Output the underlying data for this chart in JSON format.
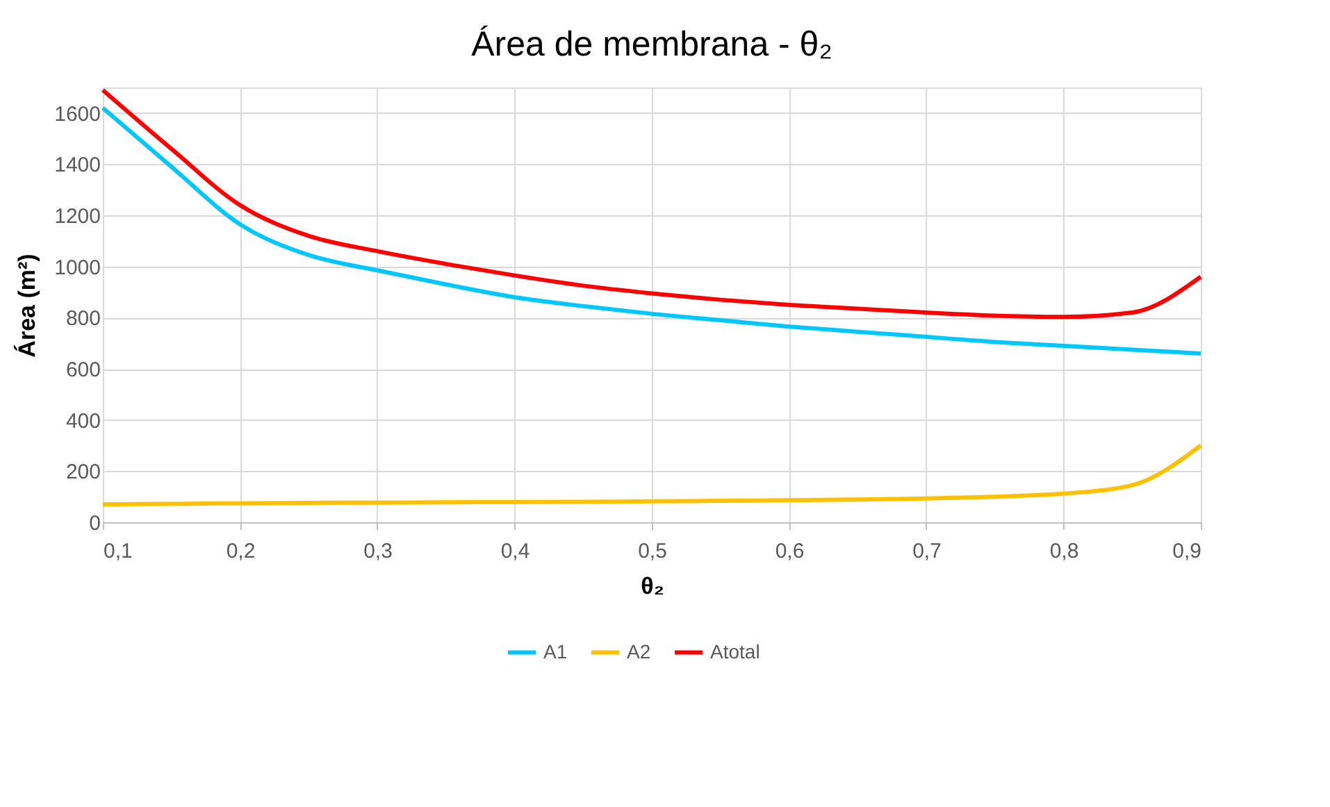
{
  "chart_data": {
    "type": "line",
    "title": "Área de membrana  -  θ₂",
    "xlabel": "θ₂",
    "ylabel": "Área (m²)",
    "x": [
      0.1,
      0.15,
      0.2,
      0.25,
      0.3,
      0.35,
      0.4,
      0.45,
      0.5,
      0.55,
      0.6,
      0.65,
      0.7,
      0.75,
      0.8,
      0.85,
      0.9
    ],
    "series": [
      {
        "name": "A1",
        "color": "#00c8ff",
        "values": [
          1620,
          1390,
          1165,
          1045,
          985,
          930,
          880,
          845,
          815,
          790,
          765,
          745,
          725,
          705,
          690,
          675,
          660
        ]
      },
      {
        "name": "A2",
        "color": "#ffc000",
        "values": [
          70,
          72,
          74,
          76,
          77,
          78,
          79,
          80,
          82,
          84,
          86,
          89,
          93,
          100,
          112,
          145,
          300
        ]
      },
      {
        "name": "Atotal",
        "color": "#ff0000",
        "values": [
          1690,
          1460,
          1240,
          1120,
          1060,
          1010,
          965,
          925,
          895,
          870,
          850,
          835,
          820,
          808,
          803,
          820,
          960
        ]
      }
    ],
    "xlim": [
      0.1,
      0.9
    ],
    "xticks": [
      {
        "value": 0.1,
        "label": "0,1"
      },
      {
        "value": 0.2,
        "label": "0,2"
      },
      {
        "value": 0.3,
        "label": "0,3"
      },
      {
        "value": 0.4,
        "label": "0,4"
      },
      {
        "value": 0.5,
        "label": "0,5"
      },
      {
        "value": 0.6,
        "label": "0,6"
      },
      {
        "value": 0.7,
        "label": "0,7"
      },
      {
        "value": 0.8,
        "label": "0,8"
      },
      {
        "value": 0.9,
        "label": "0,9"
      }
    ],
    "ylim": [
      0,
      1700
    ],
    "yticks": [
      0,
      200,
      400,
      600,
      800,
      1000,
      1200,
      1400,
      1600
    ],
    "grid": true,
    "legend": "bottom",
    "marker": "none",
    "line_style": "solid"
  }
}
